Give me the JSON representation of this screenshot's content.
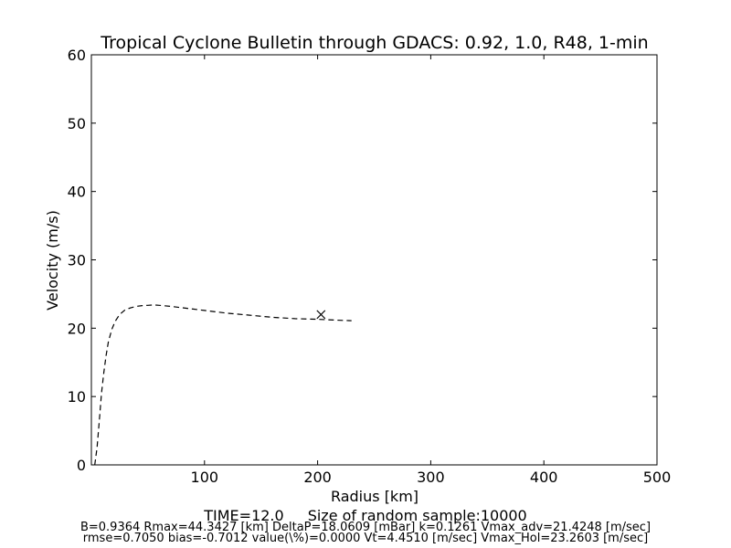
{
  "chart_data": {
    "type": "line",
    "title": "Tropical Cyclone Bulletin through GDACS: 0.92, 1.0, R48, 1-min",
    "xlabel": "Radius [km]",
    "ylabel": "Velocity (m/s)",
    "xlim": [
      0,
      500
    ],
    "ylim": [
      0,
      60
    ],
    "xticks": [
      "100",
      "200",
      "300",
      "400",
      "500"
    ],
    "yticks": [
      "0",
      "10",
      "20",
      "30",
      "40",
      "50",
      "60"
    ],
    "grid": false,
    "series": [
      {
        "style": "dashed",
        "color": "#000000",
        "x": [
          3,
          5,
          7,
          9,
          11,
          13,
          15,
          18,
          21,
          25,
          30,
          35,
          40,
          45,
          50,
          55,
          60,
          70,
          80,
          90,
          100,
          120,
          140,
          160,
          180,
          200,
          220,
          230
        ],
        "y": [
          0.0,
          2.5,
          6.5,
          10.5,
          13.5,
          16.0,
          18.0,
          19.8,
          21.0,
          22.0,
          22.7,
          23.0,
          23.2,
          23.3,
          23.35,
          23.4,
          23.35,
          23.2,
          23.0,
          22.8,
          22.6,
          22.2,
          21.9,
          21.6,
          21.4,
          21.3,
          21.15,
          21.1
        ]
      }
    ],
    "markers": [
      {
        "symbol": "x",
        "x": 203,
        "y": 22.0,
        "color": "#000000"
      }
    ]
  },
  "footer": {
    "time": "TIME=12.0",
    "sample": "Size of random sample:10000",
    "line2": "B=0.9364 Rmax=44.3427 [km]  DeltaP=18.0609 [mBar] k=0.1261 Vmax_adv=21.4248 [m/sec]",
    "line3": "rmse=0.7050 bias=-0.7012 value(\\%)=0.0000 Vt=4.4510 [m/sec] Vmax_Hol=23.2603 [m/sec]"
  }
}
